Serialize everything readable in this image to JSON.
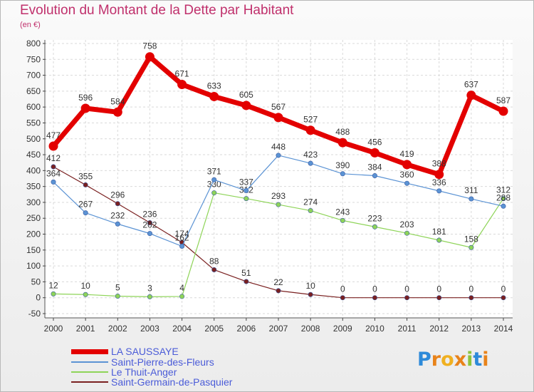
{
  "title": "Evolution du Montant de la Dette par Habitant",
  "unit_label": "(en €)",
  "logo": {
    "text": "Proxiti",
    "colors": [
      "#2d8ad9",
      "#e8831a",
      "#f0b020",
      "#e8831a",
      "#8cc43c",
      "#2d8ad9",
      "#e8831a"
    ]
  },
  "chart_data": {
    "type": "line",
    "title": "Evolution du Montant de la Dette par Habitant",
    "ylabel": "(en €)",
    "xlabel": "",
    "x": [
      "2000",
      "2001",
      "2002",
      "2003",
      "2004",
      "2005",
      "2006",
      "2007",
      "2008",
      "2009",
      "2010",
      "2011",
      "2012",
      "2013",
      "2014"
    ],
    "ylim": [
      -50,
      800
    ],
    "yticks": [
      -50,
      0,
      50,
      100,
      150,
      200,
      250,
      300,
      350,
      400,
      450,
      500,
      550,
      600,
      650,
      700,
      750,
      800
    ],
    "grid": true,
    "legend_position": "bottom-left",
    "series": [
      {
        "name": "Saint-Germain-de-Pasquier",
        "color": "#7a2020",
        "width": 1.2,
        "values": [
          412,
          355,
          296,
          236,
          174,
          88,
          51,
          22,
          10,
          0,
          0,
          0,
          0,
          0,
          0
        ]
      },
      {
        "name": "Le Thuit-Anger",
        "color": "#8ed458",
        "width": 1.2,
        "values": [
          12,
          10,
          5,
          3,
          4,
          330,
          312,
          293,
          274,
          243,
          223,
          203,
          181,
          158,
          312
        ]
      },
      {
        "name": "Saint-Pierre-des-Fleurs",
        "color": "#5b93d4",
        "width": 1.2,
        "values": [
          364,
          267,
          232,
          202,
          162,
          371,
          337,
          448,
          423,
          390,
          384,
          360,
          336,
          311,
          288
        ]
      },
      {
        "name": "LA SAUSSAYE",
        "color": "#e30000",
        "width": 7,
        "values": [
          477,
          596,
          584,
          758,
          671,
          633,
          605,
          567,
          527,
          488,
          456,
          419,
          388,
          637,
          587
        ]
      }
    ]
  },
  "legend": [
    {
      "label": "LA SAUSSAYE",
      "color": "#e30000",
      "thickness": 7
    },
    {
      "label": "Saint-Pierre-des-Fleurs",
      "color": "#5b93d4",
      "thickness": 2
    },
    {
      "label": "Le Thuit-Anger",
      "color": "#8ed458",
      "thickness": 2
    },
    {
      "label": "Saint-Germain-de-Pasquier",
      "color": "#7a2020",
      "thickness": 2
    }
  ]
}
